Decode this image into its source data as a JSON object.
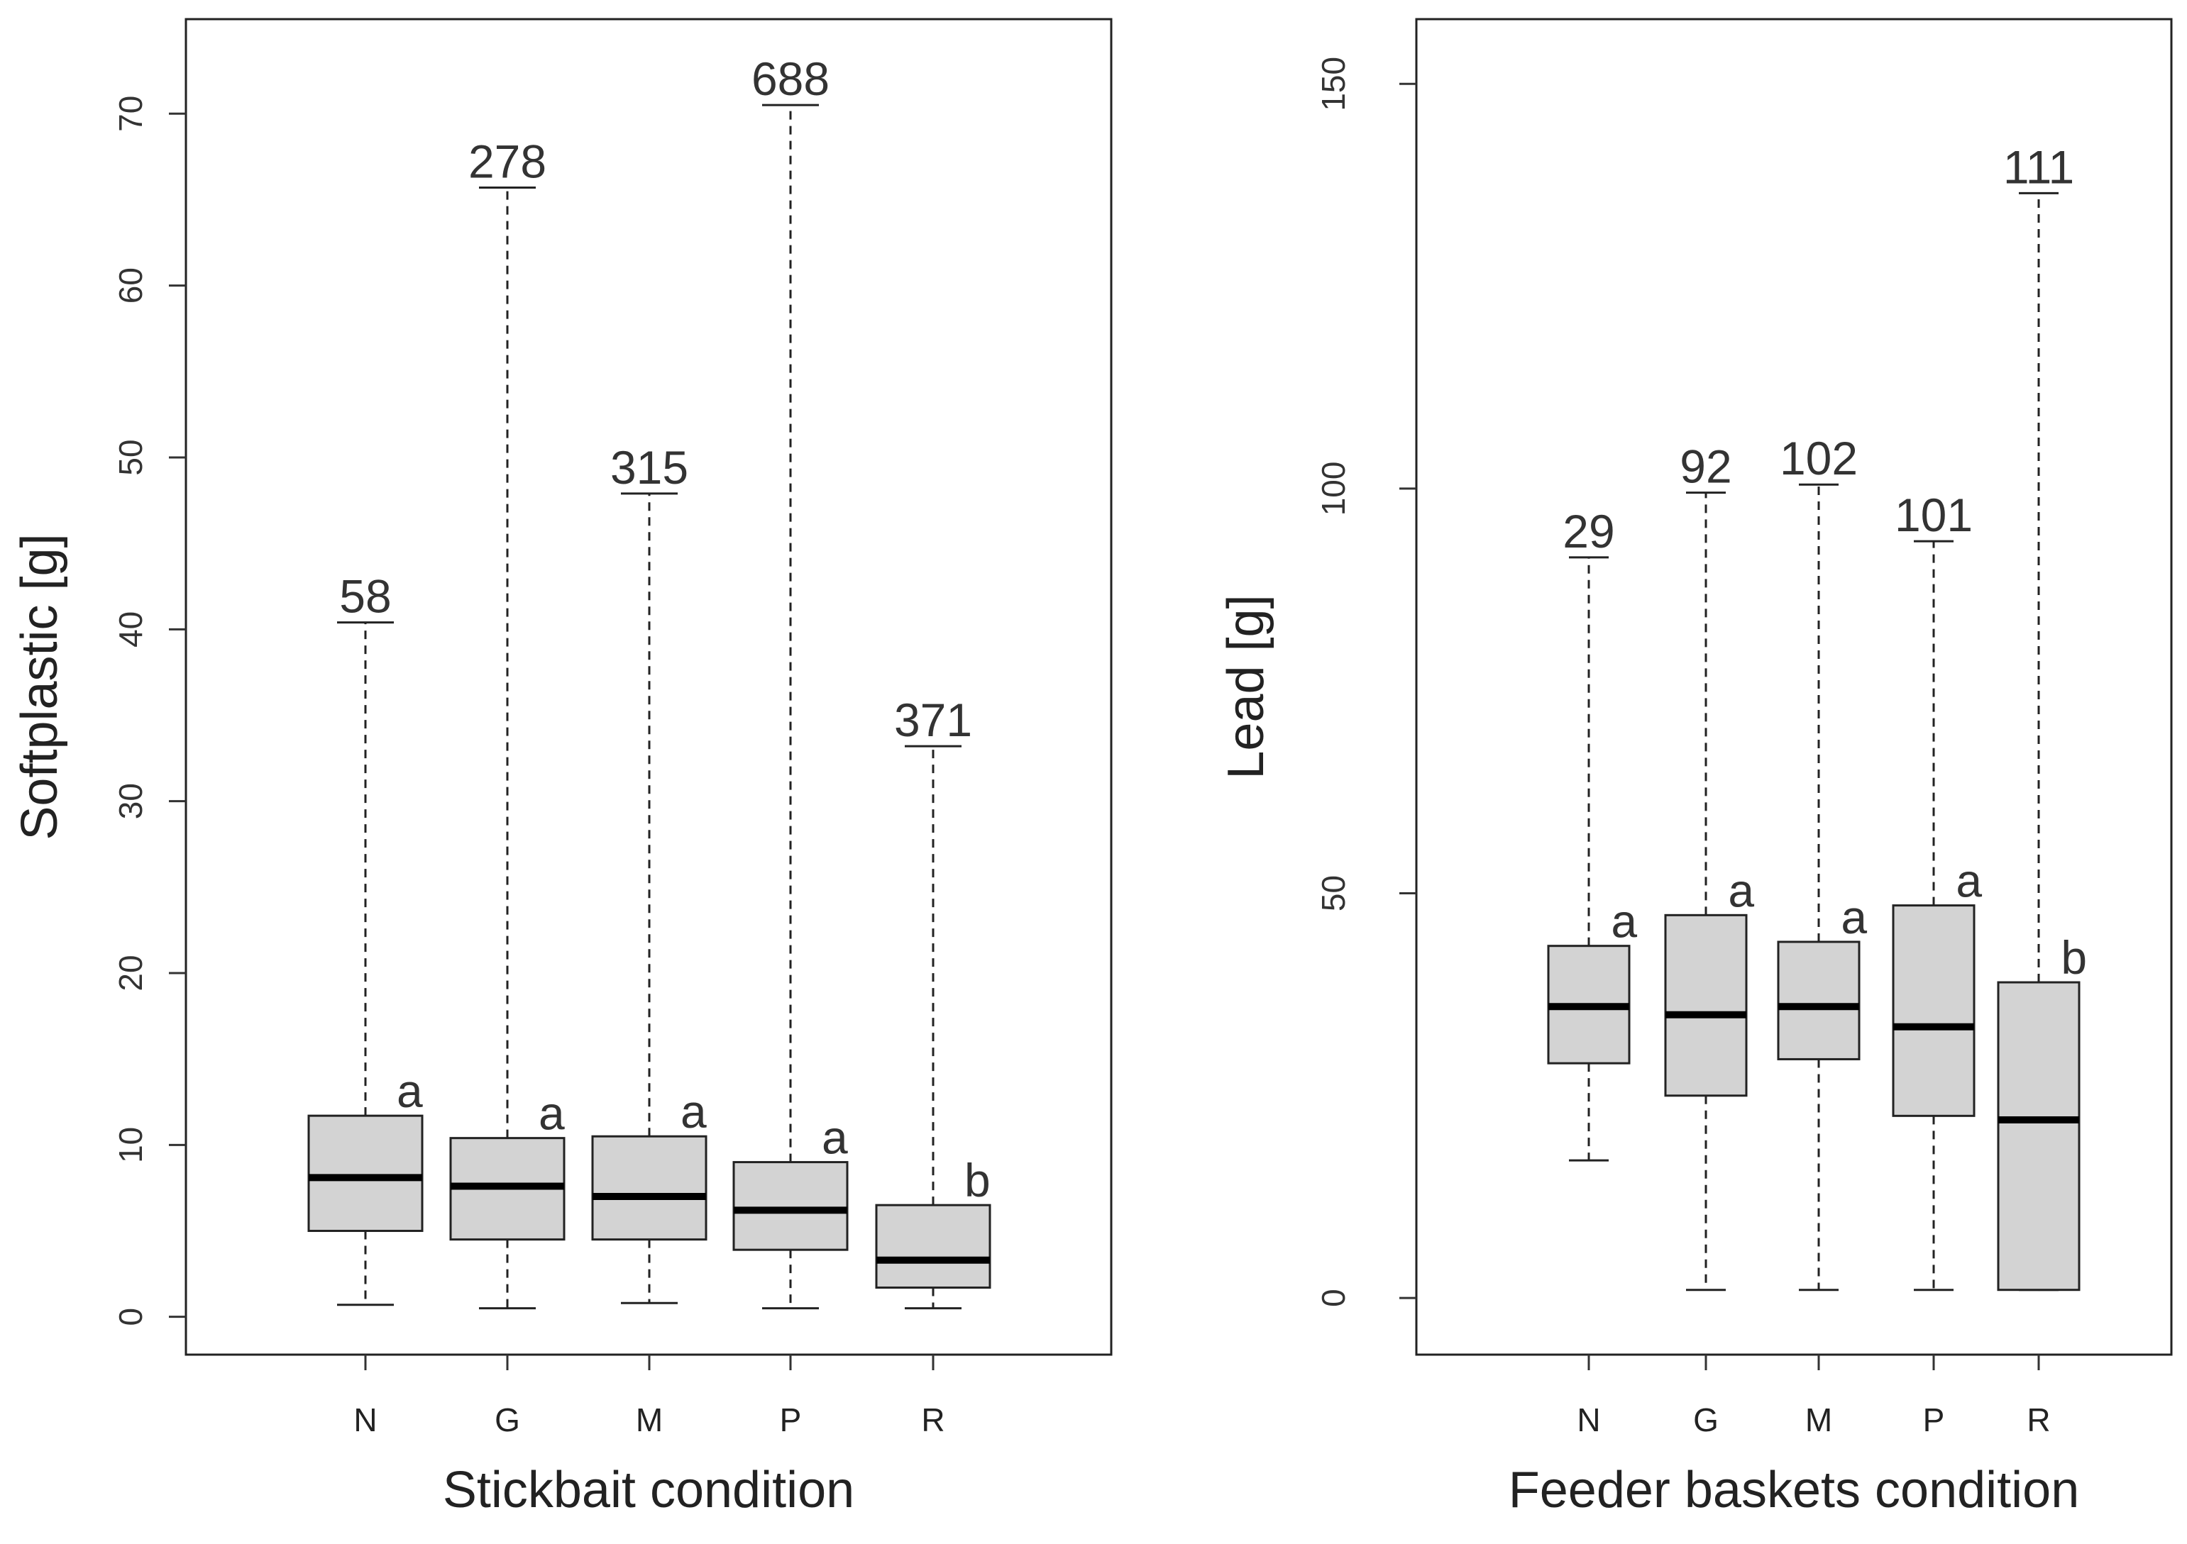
{
  "colors": {
    "box_fill": "#d3d3d3",
    "stroke": "#222222",
    "text": "#333333"
  },
  "chart_data": [
    {
      "type": "boxplot",
      "title": "",
      "xlabel": "Stickbait condition",
      "ylabel": "Softplastic [g]",
      "ylim": [
        -2.2,
        75.5
      ],
      "yticks": [
        0,
        10,
        20,
        30,
        40,
        50,
        60,
        70
      ],
      "ytick_labels": [
        "0",
        "10",
        "20",
        "30",
        "40",
        "50",
        "60",
        "70"
      ],
      "categories": [
        "N",
        "G",
        "M",
        "P",
        "R"
      ],
      "boxes": [
        {
          "category": "N",
          "n": "58",
          "group": "a",
          "min": 0.7,
          "q1": 5.0,
          "median": 8.1,
          "q3": 11.7,
          "max": 40.4
        },
        {
          "category": "G",
          "n": "278",
          "group": "a",
          "min": 0.5,
          "q1": 4.5,
          "median": 7.6,
          "q3": 10.4,
          "max": 65.7
        },
        {
          "category": "M",
          "n": "315",
          "group": "a",
          "min": 0.8,
          "q1": 4.5,
          "median": 7.0,
          "q3": 10.5,
          "max": 47.9
        },
        {
          "category": "P",
          "n": "688",
          "group": "a",
          "min": 0.5,
          "q1": 3.9,
          "median": 6.2,
          "q3": 9.0,
          "max": 70.5
        },
        {
          "category": "R",
          "n": "371",
          "group": "b",
          "min": 0.5,
          "q1": 1.7,
          "median": 3.3,
          "q3": 6.5,
          "max": 33.2
        }
      ]
    },
    {
      "type": "boxplot",
      "title": "",
      "xlabel": "Feeder baskets condition",
      "ylabel": "Lead [g]",
      "ylim": [
        -7,
        158
      ],
      "yticks": [
        0,
        50,
        100,
        150
      ],
      "ytick_labels": [
        "0",
        "50",
        "100",
        "150"
      ],
      "categories": [
        "N",
        "G",
        "M",
        "P",
        "R"
      ],
      "boxes": [
        {
          "category": "N",
          "n": "29",
          "group": "a",
          "min": 17,
          "q1": 29,
          "median": 36,
          "q3": 43.5,
          "max": 91.5
        },
        {
          "category": "G",
          "n": "92",
          "group": "a",
          "min": 1,
          "q1": 25,
          "median": 35,
          "q3": 47.3,
          "max": 99.5
        },
        {
          "category": "M",
          "n": "102",
          "group": "a",
          "min": 1,
          "q1": 29.5,
          "median": 36,
          "q3": 44,
          "max": 100.5
        },
        {
          "category": "P",
          "n": "101",
          "group": "a",
          "min": 1,
          "q1": 22.5,
          "median": 33.5,
          "q3": 48.5,
          "max": 93.5
        },
        {
          "category": "R",
          "n": "111",
          "group": "b",
          "min": 1,
          "q1": 1,
          "median": 22,
          "q3": 39,
          "max": 136.5
        }
      ]
    }
  ]
}
